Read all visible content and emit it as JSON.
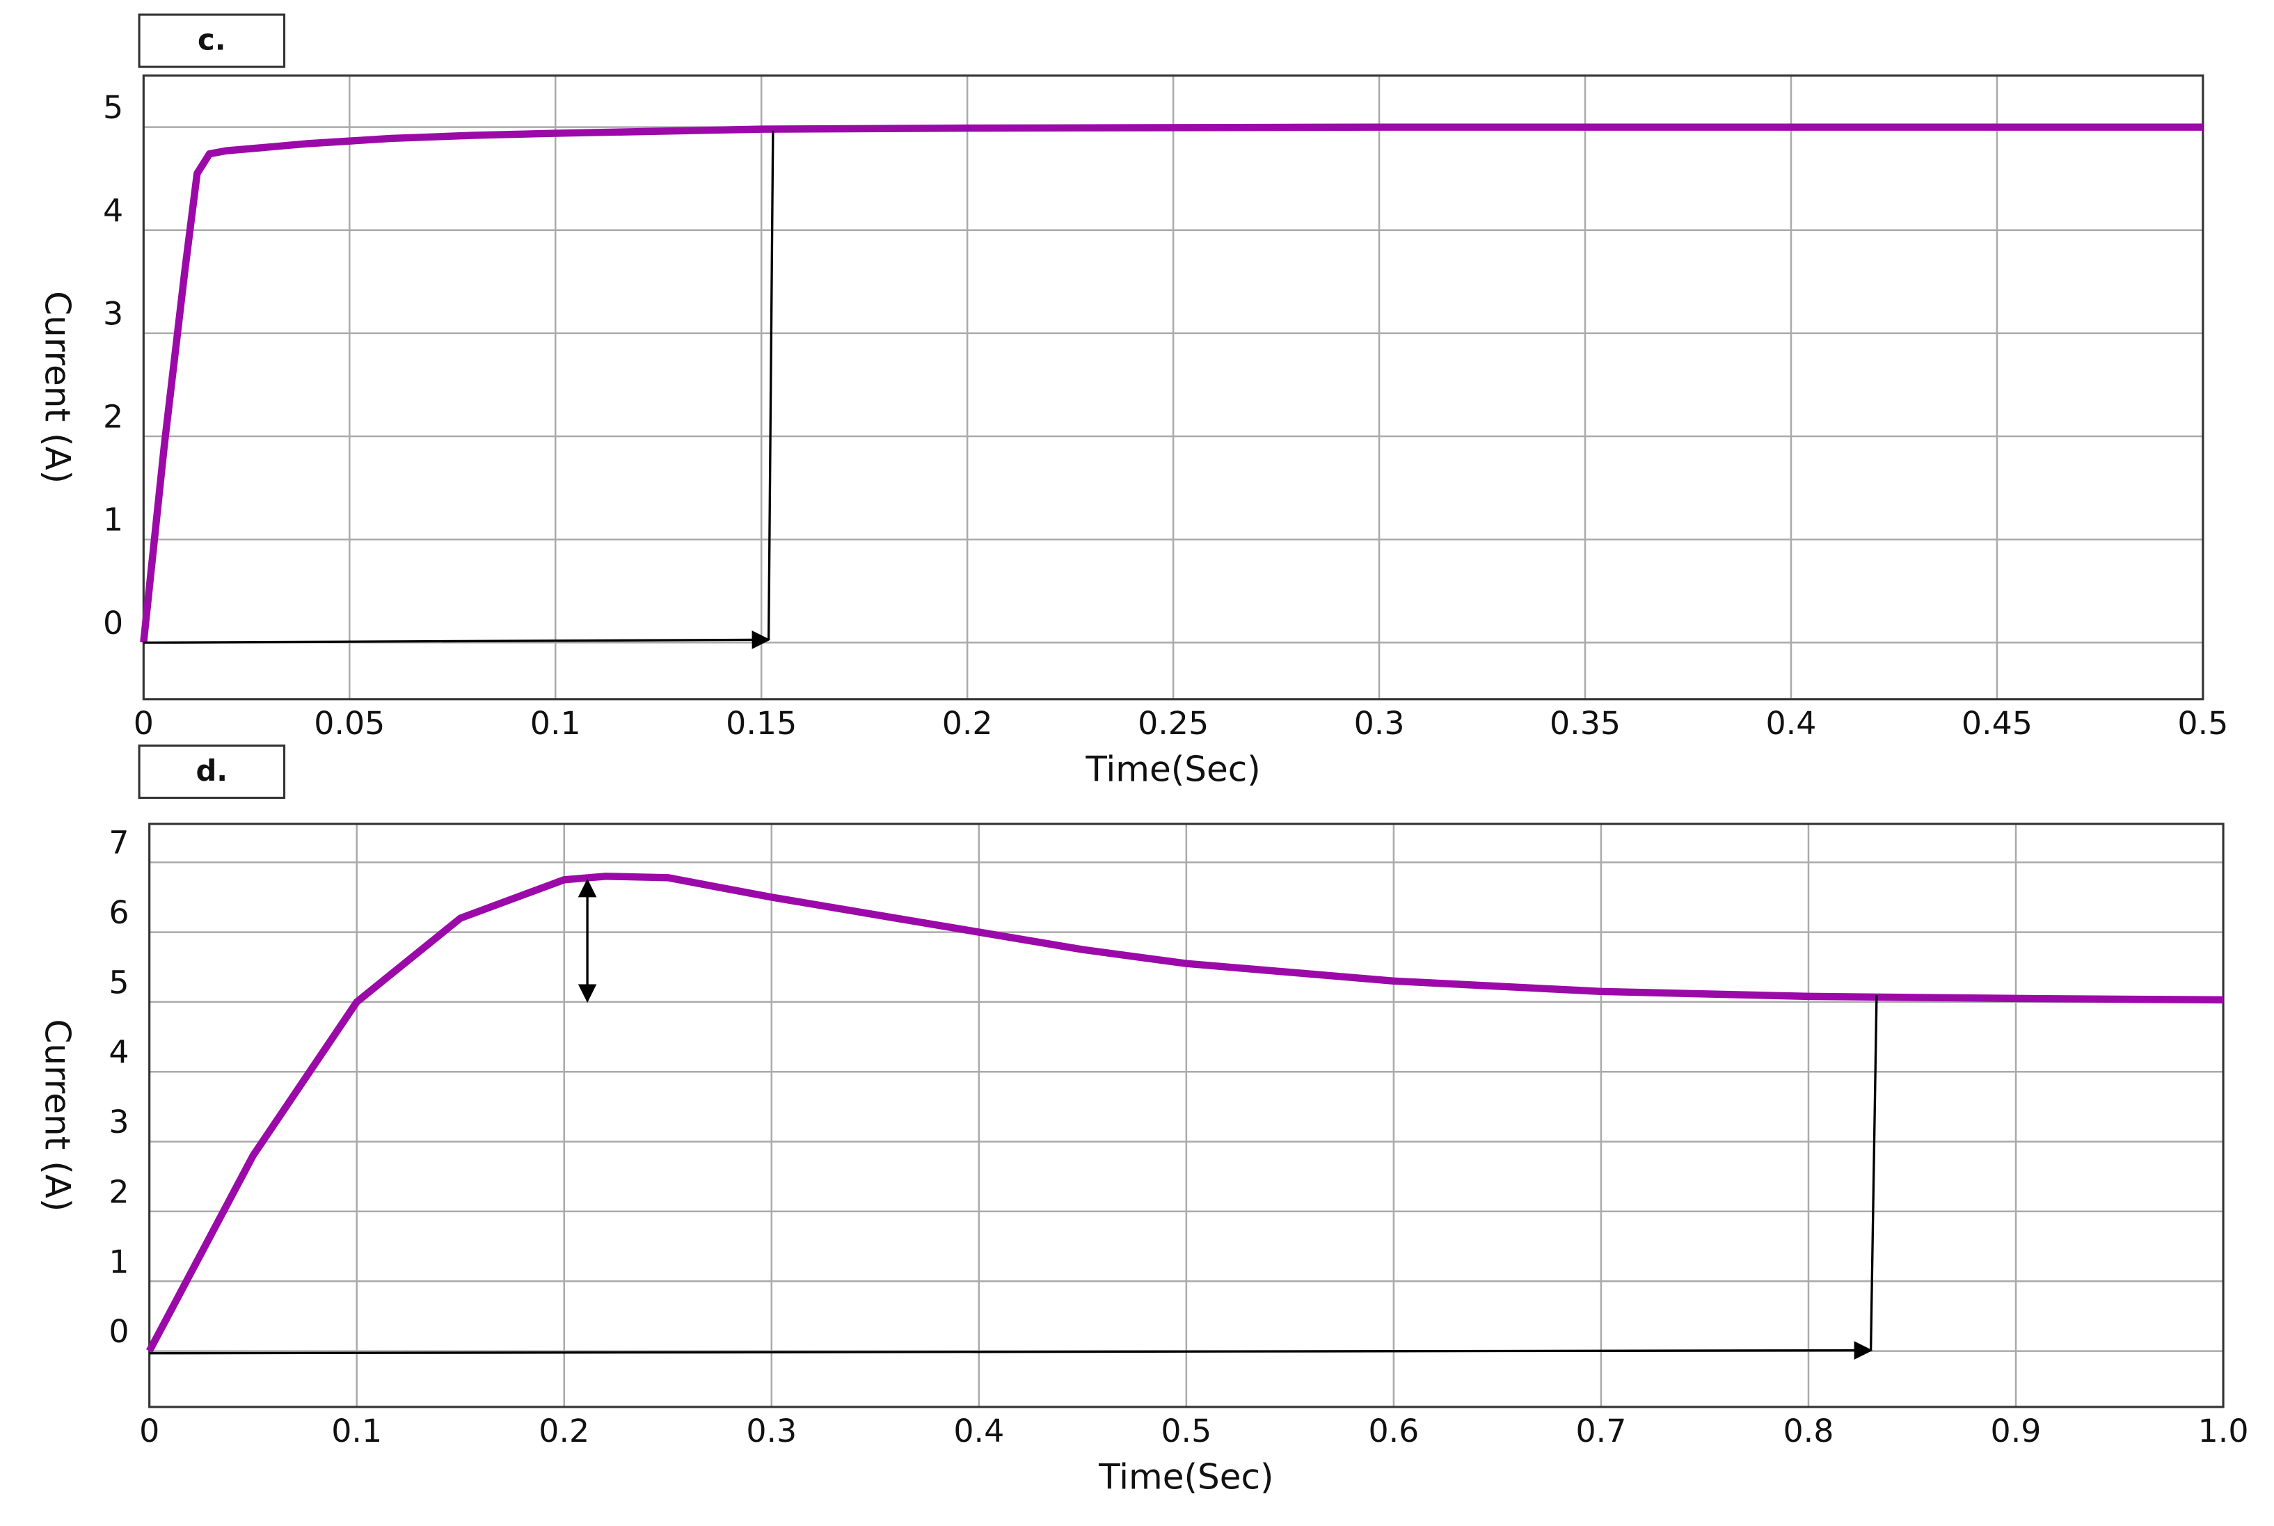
{
  "chart_data": [
    {
      "type": "line",
      "title": "c.",
      "x_label": "Time(Sec)",
      "y_label": "Current (A)",
      "x": [
        0,
        0.005,
        0.01,
        0.013,
        0.016,
        0.02,
        0.04,
        0.06,
        0.08,
        0.1,
        0.15,
        0.2,
        0.3,
        0.4,
        0.5
      ],
      "series": [
        {
          "name": "Current",
          "color": "#9b0aa8",
          "values": [
            0,
            1.9,
            3.6,
            4.55,
            4.74,
            4.77,
            4.84,
            4.89,
            4.92,
            4.94,
            4.98,
            4.99,
            5,
            5,
            5
          ]
        }
      ],
      "xlim": [
        0,
        0.5
      ],
      "xticks": [
        0,
        0.05,
        0.1,
        0.15,
        0.2,
        0.25,
        0.3,
        0.35,
        0.4,
        0.45,
        0.5
      ],
      "ylim": [
        -0.55,
        5.5
      ],
      "yticks": [
        0,
        1,
        2,
        3,
        4,
        5
      ],
      "grid": true
    },
    {
      "type": "line",
      "title": "d.",
      "x_label": "Time(Sec)",
      "y_label": "Current (A)",
      "x": [
        0,
        0.05,
        0.1,
        0.15,
        0.2,
        0.22,
        0.25,
        0.3,
        0.35,
        0.4,
        0.45,
        0.5,
        0.6,
        0.7,
        0.8,
        0.9,
        1.0
      ],
      "series": [
        {
          "name": "Current",
          "color": "#9b0aa8",
          "values": [
            0,
            2.8,
            5.0,
            6.2,
            6.75,
            6.8,
            6.78,
            6.5,
            6.25,
            6.0,
            5.75,
            5.55,
            5.3,
            5.15,
            5.08,
            5.05,
            5.03
          ]
        }
      ],
      "xlim": [
        0,
        1
      ],
      "xticks": [
        0,
        0.1,
        0.2,
        0.3,
        0.4,
        0.5,
        0.6,
        0.7,
        0.8,
        0.9,
        {
          "value": 1,
          "label": "1.0"
        }
      ],
      "ylim": [
        -0.8,
        7.55
      ],
      "yticks": [
        0,
        1,
        2,
        3,
        4,
        5,
        6,
        7
      ],
      "grid": true
    }
  ]
}
